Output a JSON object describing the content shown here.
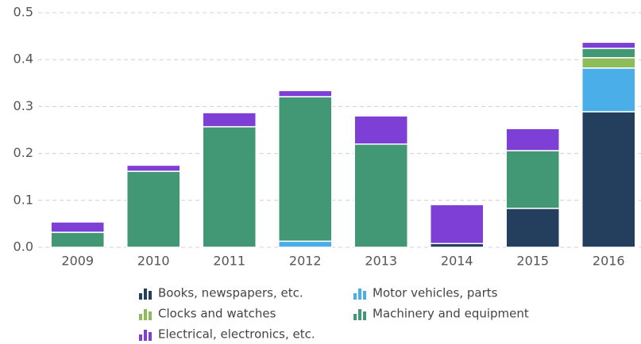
{
  "chart_data": {
    "type": "stacked-bar",
    "categories": [
      "2009",
      "2010",
      "2011",
      "2012",
      "2013",
      "2014",
      "2015",
      "2016"
    ],
    "series": [
      {
        "name": "Books, newspapers, etc.",
        "color": "#243f5e",
        "values": [
          0,
          0,
          0,
          0,
          0,
          0.008,
          0.083,
          0.289
        ]
      },
      {
        "name": "Motor vehicles, parts",
        "color": "#4aaee8",
        "values": [
          0,
          0,
          0,
          0.013,
          0,
          0,
          0,
          0.093
        ]
      },
      {
        "name": "Clocks and watches",
        "color": "#8fbc5a",
        "values": [
          0,
          0,
          0,
          0,
          0,
          0,
          0,
          0.022
        ]
      },
      {
        "name": "Machinery and equipment",
        "color": "#429775",
        "values": [
          0.032,
          0.162,
          0.257,
          0.308,
          0.22,
          0,
          0.123,
          0.02
        ]
      },
      {
        "name": "Electrical, electronics, etc.",
        "color": "#7d3fd6",
        "values": [
          0.022,
          0.013,
          0.03,
          0.013,
          0.06,
          0.083,
          0.047,
          0.013
        ]
      }
    ],
    "ylim": [
      0,
      0.5
    ],
    "yticks": [
      {
        "value": 0,
        "label": "0.0"
      },
      0.1,
      0.2,
      0.3,
      0.4,
      0.5
    ],
    "grid": true
  }
}
